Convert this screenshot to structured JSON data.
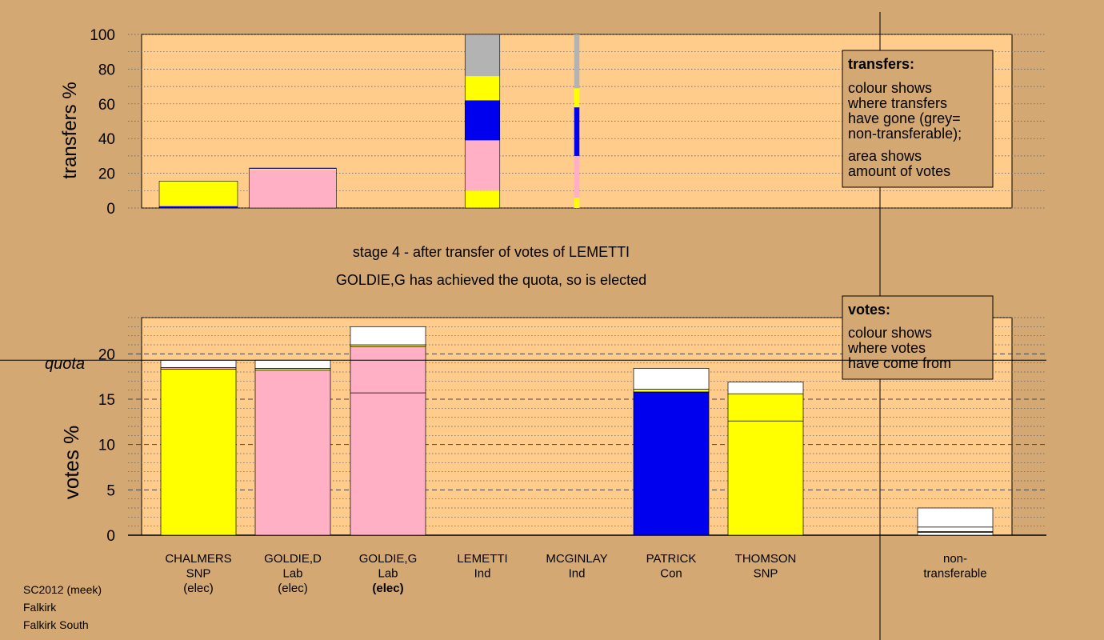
{
  "colors": {
    "background": "#d4a873",
    "plot_area": "#ffcc8c",
    "yellow_snp": "#ffff00",
    "pink_lab": "#ffb0c4",
    "blue_con": "#0000ee",
    "grey_nontransferable": "#b3b3b3",
    "white": "#ffffff"
  },
  "chart_data": [
    {
      "type": "bar",
      "stacked": true,
      "ylabel": "transfers %",
      "ylim": [
        0,
        100
      ],
      "yticks": [
        "0",
        "20",
        "40",
        "60",
        "80",
        "100"
      ],
      "grid": "dotted",
      "columns": [
        {
          "candidate": "CHALMERS",
          "width_share": 0.09,
          "segments": [
            {
              "color": "blue_con",
              "value": 1
            },
            {
              "color": "pink_lab",
              "value": 0.5
            },
            {
              "color": "yellow_snp",
              "value": 14
            }
          ]
        },
        {
          "candidate": "GOLDIE,D",
          "width_share": 0.1,
          "segments": [
            {
              "color": "pink_lab",
              "value": 22
            },
            {
              "color": "yellow_snp",
              "value": 0.6
            },
            {
              "color": "blue_con",
              "value": 0.4
            }
          ]
        },
        {
          "candidate": "GOLDIE,G",
          "width_share": 0,
          "segments": []
        },
        {
          "candidate": "LEMETTI",
          "width_share": 0.04,
          "segments": [
            {
              "color": "yellow_snp",
              "value": 10
            },
            {
              "color": "pink_lab",
              "value": 29
            },
            {
              "color": "blue_con",
              "value": 23
            },
            {
              "color": "yellow_snp",
              "value": 14
            },
            {
              "color": "grey_nontransferable",
              "value": 24
            }
          ]
        },
        {
          "candidate": "MCGINLAY",
          "width_share": 0.006,
          "segments": [
            {
              "color": "yellow_snp",
              "value": 6
            },
            {
              "color": "pink_lab",
              "value": 24
            },
            {
              "color": "blue_con",
              "value": 28
            },
            {
              "color": "yellow_snp",
              "value": 11
            },
            {
              "color": "grey_nontransferable",
              "value": 31
            }
          ]
        },
        {
          "candidate": "PATRICK",
          "width_share": 0,
          "segments": []
        },
        {
          "candidate": "THOMSON",
          "width_share": 0,
          "segments": []
        }
      ]
    },
    {
      "type": "bar",
      "stacked": true,
      "ylabel": "votes %",
      "ylim": [
        0,
        24
      ],
      "yticks": [
        "0",
        "5",
        "10",
        "15",
        "20"
      ],
      "quota": 19.3,
      "quota_label": "quota",
      "categories": [
        {
          "name": "CHALMERS",
          "party": "SNP",
          "status": "(elec)",
          "bold_status": false
        },
        {
          "name": "GOLDIE,D",
          "party": "Lab",
          "status": "(elec)",
          "bold_status": false
        },
        {
          "name": "GOLDIE,G",
          "party": "Lab",
          "status": "(elec)",
          "bold_status": true
        },
        {
          "name": "LEMETTI",
          "party": "Ind",
          "status": "",
          "bold_status": false
        },
        {
          "name": "MCGINLAY",
          "party": "Ind",
          "status": "",
          "bold_status": false
        },
        {
          "name": "PATRICK",
          "party": "Con",
          "status": "",
          "bold_status": false
        },
        {
          "name": "THOMSON",
          "party": "SNP",
          "status": "",
          "bold_status": false
        }
      ],
      "series": [
        {
          "candidate": "CHALMERS",
          "segments": [
            {
              "color": "yellow_snp",
              "value": 18.3
            },
            {
              "color": "pink_lab",
              "value": 0.2
            },
            {
              "color": "white",
              "value": 0.8
            }
          ]
        },
        {
          "candidate": "GOLDIE,D",
          "segments": [
            {
              "color": "pink_lab",
              "value": 18.2
            },
            {
              "color": "yellow_snp",
              "value": 0.2
            },
            {
              "color": "white",
              "value": 0.9
            }
          ]
        },
        {
          "candidate": "GOLDIE,G",
          "segments": [
            {
              "color": "pink_lab",
              "value": 15.7
            },
            {
              "color": "pink_lab",
              "value": 5.1
            },
            {
              "color": "yellow_snp",
              "value": 0.2
            },
            {
              "color": "white",
              "value": 2.0
            }
          ]
        },
        {
          "candidate": "LEMETTI",
          "segments": []
        },
        {
          "candidate": "MCGINLAY",
          "segments": []
        },
        {
          "candidate": "PATRICK",
          "segments": [
            {
              "color": "blue_con",
              "value": 15.8
            },
            {
              "color": "yellow_snp",
              "value": 0.3
            },
            {
              "color": "white",
              "value": 2.3
            }
          ]
        },
        {
          "candidate": "THOMSON",
          "segments": [
            {
              "color": "yellow_snp",
              "value": 12.6
            },
            {
              "color": "yellow_snp",
              "value": 3.0
            },
            {
              "color": "white",
              "value": 1.3
            }
          ]
        }
      ],
      "non_transferable": {
        "label_line1": "non-",
        "label_line2": "transferable",
        "segments": [
          {
            "color": "white",
            "value": 0.3
          },
          {
            "color": "yellow_snp",
            "value": 0.1
          },
          {
            "color": "white",
            "value": 0.5
          },
          {
            "color": "white",
            "value": 2.1
          }
        ]
      }
    }
  ],
  "stage_line1": "stage 4 - after transfer of votes of LEMETTI",
  "stage_line2": "GOLDIE,G has achieved the quota, so is elected",
  "legend_transfers": {
    "title": "transfers:",
    "lines": [
      "colour shows",
      "where transfers",
      "have gone (grey=",
      "non-transferable);",
      "area shows",
      "amount of votes"
    ]
  },
  "legend_votes": {
    "title": "votes:",
    "lines": [
      "colour shows",
      "where votes",
      "have come from"
    ]
  },
  "footer": {
    "line1": "SC2012 (meek)",
    "line2": "Falkirk",
    "line3": "Falkirk South"
  }
}
